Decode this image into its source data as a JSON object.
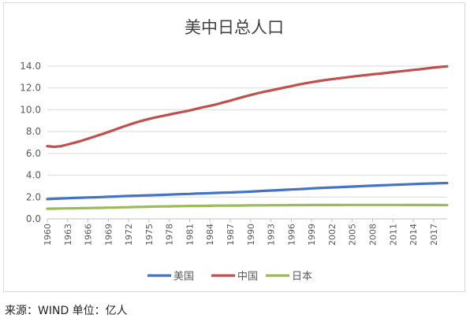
{
  "source_note": "来源：WIND 单位：亿人",
  "chart_data": {
    "type": "line",
    "title": "美中日总人口",
    "xlabel": "",
    "ylabel": "",
    "ylim": [
      0,
      14
    ],
    "yticks": [
      "0.0",
      "2.0",
      "4.0",
      "6.0",
      "8.0",
      "10.0",
      "12.0",
      "14.0"
    ],
    "ytick_values": [
      0,
      2,
      4,
      6,
      8,
      10,
      12,
      14
    ],
    "x_tick_labels": [
      "1960",
      "1963",
      "1966",
      "1969",
      "1972",
      "1975",
      "1978",
      "1981",
      "1984",
      "1987",
      "1990",
      "1993",
      "1996",
      "1999",
      "2002",
      "2005",
      "2008",
      "2011",
      "2014",
      "2017"
    ],
    "grid": "horizontal",
    "legend_position": "bottom",
    "x": [
      1960,
      1961,
      1962,
      1963,
      1964,
      1965,
      1966,
      1967,
      1968,
      1969,
      1970,
      1971,
      1972,
      1973,
      1974,
      1975,
      1976,
      1977,
      1978,
      1979,
      1980,
      1981,
      1982,
      1983,
      1984,
      1985,
      1986,
      1987,
      1988,
      1989,
      1990,
      1991,
      1992,
      1993,
      1994,
      1995,
      1996,
      1997,
      1998,
      1999,
      2000,
      2001,
      2002,
      2003,
      2004,
      2005,
      2006,
      2007,
      2008,
      2009,
      2010,
      2011,
      2012,
      2013,
      2014,
      2015,
      2016,
      2017,
      2018,
      2019
    ],
    "series": [
      {
        "name": "美国",
        "color": "#4472c4",
        "values": [
          1.81,
          1.84,
          1.87,
          1.89,
          1.92,
          1.94,
          1.96,
          1.98,
          2.0,
          2.03,
          2.05,
          2.08,
          2.1,
          2.12,
          2.14,
          2.16,
          2.18,
          2.2,
          2.22,
          2.25,
          2.27,
          2.29,
          2.32,
          2.34,
          2.36,
          2.38,
          2.4,
          2.42,
          2.45,
          2.47,
          2.5,
          2.53,
          2.57,
          2.6,
          2.63,
          2.66,
          2.69,
          2.72,
          2.75,
          2.79,
          2.82,
          2.85,
          2.88,
          2.9,
          2.93,
          2.96,
          2.99,
          3.02,
          3.04,
          3.07,
          3.09,
          3.12,
          3.14,
          3.16,
          3.19,
          3.21,
          3.23,
          3.25,
          3.27,
          3.28
        ]
      },
      {
        "name": "中国",
        "color": "#c0504d",
        "values": [
          6.67,
          6.6,
          6.66,
          6.82,
          6.98,
          7.15,
          7.35,
          7.55,
          7.75,
          7.96,
          8.18,
          8.41,
          8.62,
          8.82,
          9.0,
          9.16,
          9.3,
          9.43,
          9.56,
          9.69,
          9.81,
          9.94,
          10.09,
          10.23,
          10.36,
          10.51,
          10.67,
          10.84,
          11.02,
          11.19,
          11.35,
          11.51,
          11.65,
          11.78,
          11.91,
          12.04,
          12.17,
          12.3,
          12.42,
          12.53,
          12.63,
          12.72,
          12.8,
          12.88,
          12.96,
          13.04,
          13.11,
          13.18,
          13.25,
          13.31,
          13.38,
          13.45,
          13.52,
          13.58,
          13.65,
          13.71,
          13.79,
          13.86,
          13.93,
          13.98
        ]
      },
      {
        "name": "日本",
        "color": "#9bbb59",
        "values": [
          0.93,
          0.94,
          0.95,
          0.96,
          0.97,
          0.98,
          0.99,
          1.0,
          1.01,
          1.03,
          1.04,
          1.06,
          1.07,
          1.09,
          1.1,
          1.12,
          1.13,
          1.14,
          1.15,
          1.16,
          1.17,
          1.18,
          1.18,
          1.19,
          1.2,
          1.21,
          1.21,
          1.22,
          1.22,
          1.23,
          1.24,
          1.24,
          1.24,
          1.25,
          1.25,
          1.25,
          1.26,
          1.26,
          1.26,
          1.27,
          1.27,
          1.27,
          1.27,
          1.27,
          1.28,
          1.28,
          1.28,
          1.28,
          1.28,
          1.28,
          1.28,
          1.28,
          1.28,
          1.27,
          1.27,
          1.27,
          1.27,
          1.27,
          1.26,
          1.26
        ]
      }
    ]
  }
}
